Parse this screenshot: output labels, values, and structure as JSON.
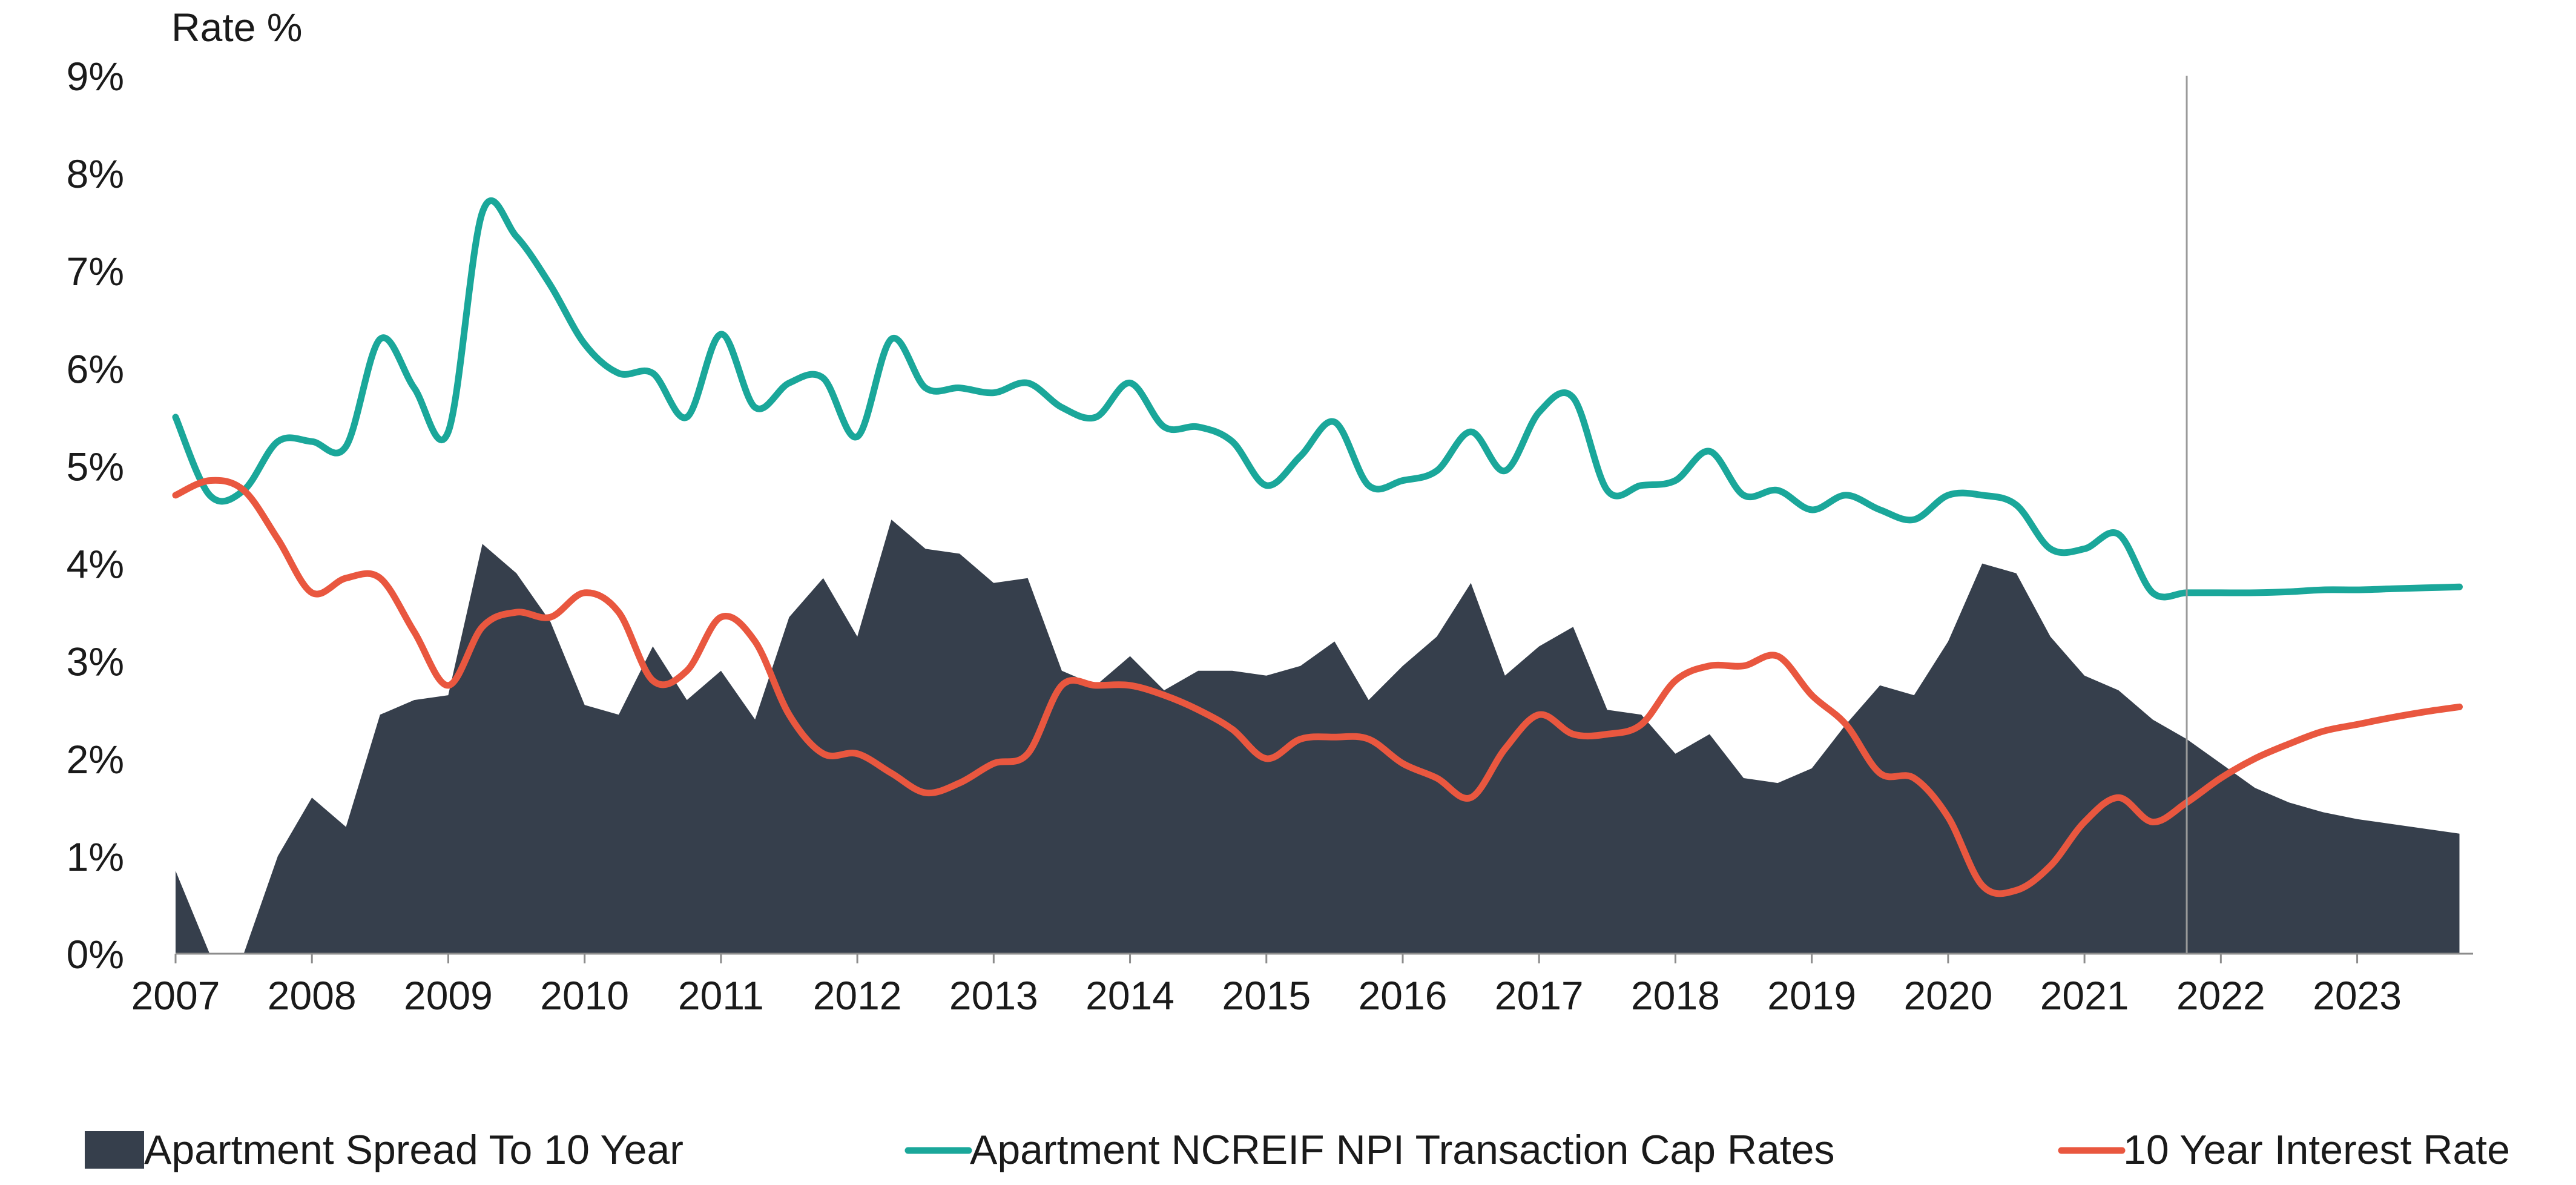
{
  "chart_data": {
    "type": "line",
    "ylabel": "Rate %",
    "xlabel": "",
    "ylim": [
      0,
      9
    ],
    "xlim": [
      2007,
      2023.85
    ],
    "y_ticks": [
      "0%",
      "1%",
      "2%",
      "3%",
      "4%",
      "5%",
      "6%",
      "7%",
      "8%",
      "9%"
    ],
    "x_ticks": [
      "2007",
      "2008",
      "2009",
      "2010",
      "2011",
      "2012",
      "2013",
      "2014",
      "2015",
      "2016",
      "2017",
      "2018",
      "2019",
      "2020",
      "2021",
      "2022",
      "2023"
    ],
    "forecast_divider_x": 2021.75,
    "grid": false,
    "legend_position": "bottom",
    "series": [
      {
        "name": "Apartment Spread To 10 Year",
        "kind": "area",
        "color": "#363f4c",
        "x": [
          2007.0,
          2007.25,
          2007.5,
          2007.75,
          2008.0,
          2008.25,
          2008.5,
          2008.75,
          2009.0,
          2009.25,
          2009.5,
          2009.75,
          2010.0,
          2010.25,
          2010.5,
          2010.75,
          2011.0,
          2011.25,
          2011.5,
          2011.75,
          2012.0,
          2012.25,
          2012.5,
          2012.75,
          2013.0,
          2013.25,
          2013.5,
          2013.75,
          2014.0,
          2014.25,
          2014.5,
          2014.75,
          2015.0,
          2015.25,
          2015.5,
          2015.75,
          2016.0,
          2016.25,
          2016.5,
          2016.75,
          2017.0,
          2017.25,
          2017.5,
          2017.75,
          2018.0,
          2018.25,
          2018.5,
          2018.75,
          2019.0,
          2019.25,
          2019.5,
          2019.75,
          2020.0,
          2020.25,
          2020.5,
          2020.75,
          2021.0,
          2021.25,
          2021.5,
          2021.75,
          2022.0,
          2022.25,
          2022.5,
          2022.75,
          2023.0,
          2023.25,
          2023.5,
          2023.75
        ],
        "values": [
          0.85,
          0.0,
          0.0,
          1.0,
          1.6,
          1.3,
          2.45,
          2.6,
          2.65,
          4.2,
          3.9,
          3.4,
          2.55,
          2.45,
          3.15,
          2.6,
          2.9,
          2.4,
          3.45,
          3.85,
          3.25,
          4.45,
          4.15,
          4.1,
          3.8,
          3.85,
          2.9,
          2.75,
          3.05,
          2.7,
          2.9,
          2.9,
          2.85,
          2.95,
          3.2,
          2.6,
          2.95,
          3.25,
          3.8,
          2.85,
          3.15,
          3.35,
          2.5,
          2.45,
          2.05,
          2.25,
          1.8,
          1.75,
          1.9,
          2.35,
          2.75,
          2.65,
          3.2,
          4.0,
          3.9,
          3.25,
          2.85,
          2.7,
          2.4,
          2.2,
          1.95,
          1.7,
          1.55,
          1.45,
          1.38,
          1.33,
          1.28,
          1.23
        ]
      },
      {
        "name": "Apartment NCREIF NPI Transaction Cap Rates",
        "kind": "line",
        "color": "#1aa79a",
        "x": [
          2007.0,
          2007.25,
          2007.5,
          2007.75,
          2008.0,
          2008.25,
          2008.5,
          2008.75,
          2009.0,
          2009.25,
          2009.5,
          2009.75,
          2010.0,
          2010.25,
          2010.5,
          2010.75,
          2011.0,
          2011.25,
          2011.5,
          2011.75,
          2012.0,
          2012.25,
          2012.5,
          2012.75,
          2013.0,
          2013.25,
          2013.5,
          2013.75,
          2014.0,
          2014.25,
          2014.5,
          2014.75,
          2015.0,
          2015.25,
          2015.5,
          2015.75,
          2016.0,
          2016.25,
          2016.5,
          2016.75,
          2017.0,
          2017.25,
          2017.5,
          2017.75,
          2018.0,
          2018.25,
          2018.5,
          2018.75,
          2019.0,
          2019.25,
          2019.5,
          2019.75,
          2020.0,
          2020.25,
          2020.5,
          2020.75,
          2021.0,
          2021.25,
          2021.5,
          2021.75,
          2022.0,
          2022.25,
          2022.5,
          2022.75,
          2023.0,
          2023.25,
          2023.5,
          2023.75
        ],
        "values": [
          5.5,
          4.7,
          4.75,
          5.25,
          5.25,
          5.2,
          6.3,
          5.8,
          5.35,
          7.6,
          7.35,
          6.85,
          6.25,
          5.95,
          5.95,
          5.5,
          6.35,
          5.6,
          5.85,
          5.9,
          5.3,
          6.3,
          5.8,
          5.8,
          5.75,
          5.85,
          5.6,
          5.5,
          5.85,
          5.4,
          5.4,
          5.25,
          4.8,
          5.1,
          5.45,
          4.8,
          4.85,
          4.95,
          5.35,
          4.95,
          5.55,
          5.7,
          4.75,
          4.8,
          4.85,
          5.15,
          4.7,
          4.75,
          4.55,
          4.7,
          4.55,
          4.45,
          4.7,
          4.7,
          4.6,
          4.15,
          4.15,
          4.3,
          3.7,
          3.7,
          3.7,
          3.7,
          3.71,
          3.73,
          3.73,
          3.74,
          3.75,
          3.76
        ]
      },
      {
        "name": "10 Year Interest Rate",
        "kind": "line",
        "color": "#e9573f",
        "x": [
          2007.0,
          2007.25,
          2007.5,
          2007.75,
          2008.0,
          2008.25,
          2008.5,
          2008.75,
          2009.0,
          2009.25,
          2009.5,
          2009.75,
          2010.0,
          2010.25,
          2010.5,
          2010.75,
          2011.0,
          2011.25,
          2011.5,
          2011.75,
          2012.0,
          2012.25,
          2012.5,
          2012.75,
          2013.0,
          2013.25,
          2013.5,
          2013.75,
          2014.0,
          2014.25,
          2014.5,
          2014.75,
          2015.0,
          2015.25,
          2015.5,
          2015.75,
          2016.0,
          2016.25,
          2016.5,
          2016.75,
          2017.0,
          2017.25,
          2017.5,
          2017.75,
          2018.0,
          2018.25,
          2018.5,
          2018.75,
          2019.0,
          2019.25,
          2019.5,
          2019.75,
          2020.0,
          2020.25,
          2020.5,
          2020.75,
          2021.0,
          2021.25,
          2021.5,
          2021.75,
          2022.0,
          2022.25,
          2022.5,
          2022.75,
          2023.0,
          2023.25,
          2023.5,
          2023.75
        ],
        "values": [
          4.7,
          4.85,
          4.75,
          4.25,
          3.7,
          3.85,
          3.85,
          3.3,
          2.75,
          3.35,
          3.5,
          3.45,
          3.7,
          3.5,
          2.8,
          2.9,
          3.45,
          3.2,
          2.45,
          2.05,
          2.05,
          1.85,
          1.65,
          1.75,
          1.95,
          2.05,
          2.75,
          2.75,
          2.75,
          2.65,
          2.5,
          2.3,
          2.0,
          2.2,
          2.22,
          2.2,
          1.95,
          1.8,
          1.6,
          2.1,
          2.45,
          2.25,
          2.25,
          2.35,
          2.8,
          2.95,
          2.95,
          3.05,
          2.65,
          2.35,
          1.85,
          1.8,
          1.4,
          0.7,
          0.65,
          0.9,
          1.35,
          1.6,
          1.35,
          1.55,
          1.8,
          2.0,
          2.15,
          2.28,
          2.35,
          2.42,
          2.48,
          2.53
        ]
      }
    ]
  }
}
